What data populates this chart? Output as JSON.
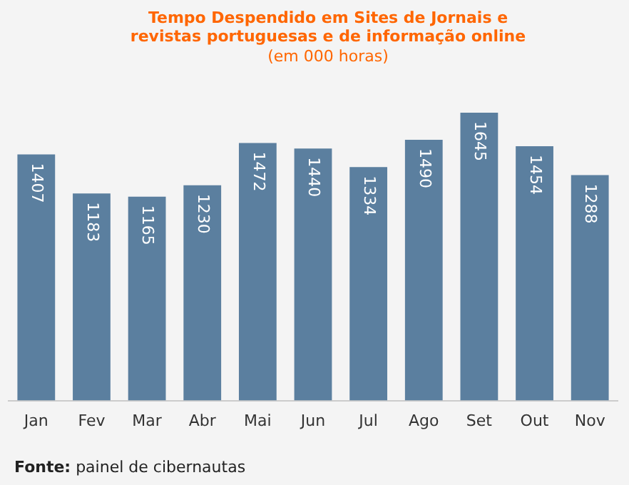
{
  "chart_data": {
    "type": "bar",
    "title": "Tempo Despendido em Sites de Jornais e revistas portuguesas e de informação online",
    "subtitle": "(em 000 horas)",
    "categories": [
      "Jan",
      "Fev",
      "Mar",
      "Abr",
      "Mai",
      "Jun",
      "Jul",
      "Ago",
      "Set",
      "Out",
      "Nov"
    ],
    "values": [
      1407,
      1183,
      1165,
      1230,
      1472,
      1440,
      1334,
      1490,
      1645,
      1454,
      1288
    ],
    "color": "#5b7f9f",
    "tick_labels": "x",
    "grid": false,
    "legend": false,
    "data_labels": true,
    "annotations": [
      "Fonte: painel de cibernautas"
    ]
  }
}
